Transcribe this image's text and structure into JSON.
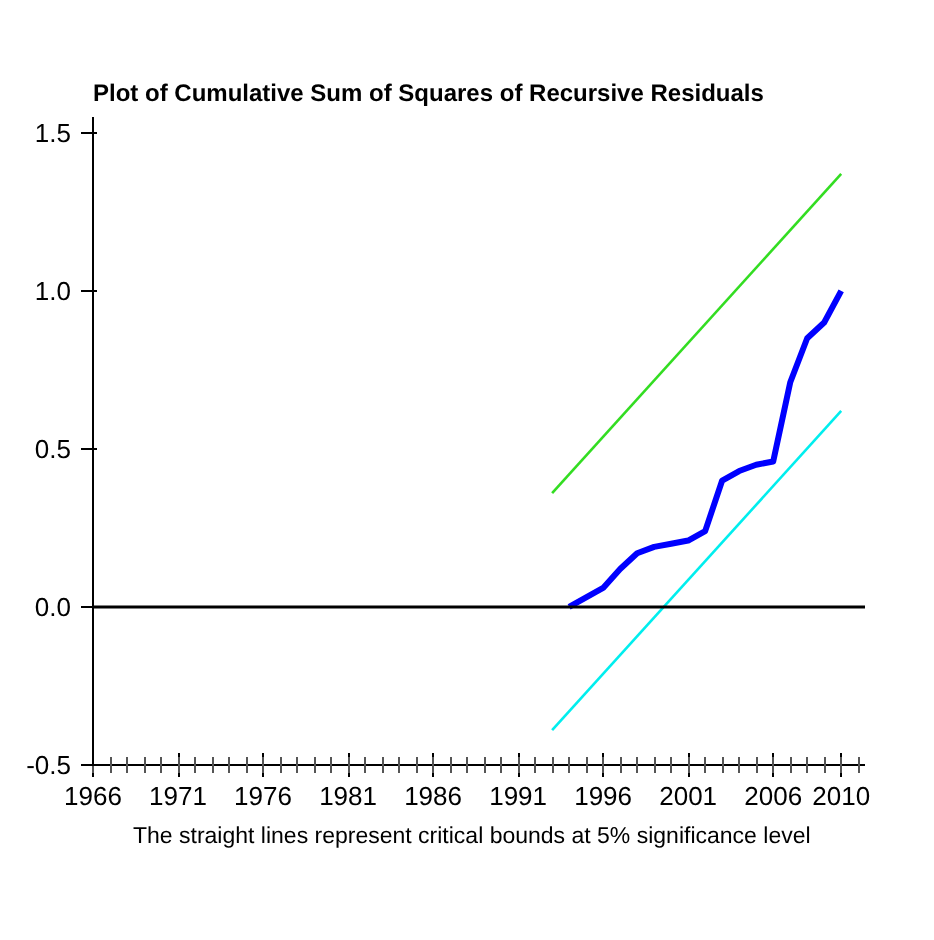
{
  "chart_data": {
    "type": "line",
    "title": "Plot of Cumulative Sum of Squares of Recursive Residuals",
    "annotations": [
      "The straight lines represent critical bounds at 5% significance level"
    ],
    "xlim": [
      1966,
      2011.4
    ],
    "ylim": [
      -0.5,
      1.55
    ],
    "xticks": [
      1966,
      1971,
      1976,
      1981,
      1986,
      1991,
      1996,
      2001,
      2006,
      2010
    ],
    "yticks": [
      {
        "value": -0.5,
        "label": "-0.5"
      },
      {
        "value": 0,
        "label": "0.0"
      },
      {
        "value": 0.5,
        "label": "0.5"
      },
      {
        "value": 1,
        "label": "1.0"
      },
      {
        "value": 1.5,
        "label": "1.5"
      }
    ],
    "grid": false,
    "marker": "none",
    "line_style": "solid",
    "ref_lines": [
      {
        "axis": "y",
        "value": 0,
        "color": "#000000"
      }
    ],
    "series": [
      {
        "color": "#0000ff",
        "x": [
          1994,
          1995,
          1996,
          1997,
          1998,
          1999,
          2000,
          2001,
          2002,
          2003,
          2004,
          2005,
          2006,
          2007,
          2008,
          2009,
          2010
        ],
        "values": [
          0.0,
          0.03,
          0.06,
          0.12,
          0.17,
          0.19,
          0.2,
          0.21,
          0.24,
          0.4,
          0.43,
          0.45,
          0.46,
          0.71,
          0.85,
          0.9,
          1.0
        ]
      },
      {
        "color": "#33dd22",
        "x": [
          1993,
          2010
        ],
        "values": [
          0.36,
          1.37
        ]
      },
      {
        "color": "#00eeee",
        "x": [
          1993,
          2010
        ],
        "values": [
          -0.39,
          0.62
        ]
      }
    ]
  }
}
